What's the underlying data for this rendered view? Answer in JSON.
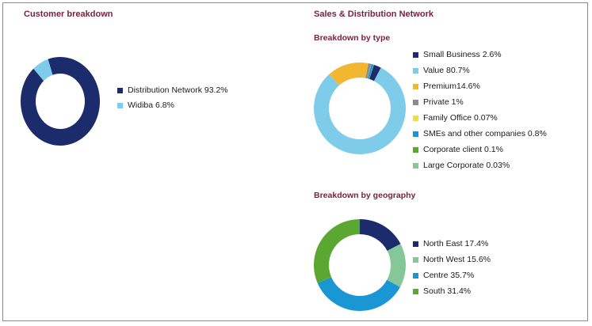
{
  "left_title": "Customer breakdown",
  "right_title": "Sales & Distribution Network",
  "chart_data": [
    {
      "type": "pie",
      "title": "",
      "categories": [
        "Distribution Network",
        "Widiba"
      ],
      "labels": [
        "Distribution Network 93.2%",
        "Widiba 6.8%"
      ],
      "values": [
        93.2,
        6.8
      ],
      "colors": [
        "#1c2b6b",
        "#7ecbea"
      ],
      "legend": "right"
    },
    {
      "type": "pie",
      "title": "Breakdown by type",
      "categories": [
        "Small Business",
        "Value",
        "Premium",
        "Private",
        "Family Office",
        "SMEs and other companies",
        "Corporate client",
        "Large Corporate"
      ],
      "labels": [
        "Small Business 2.6%",
        "Value 80.7%",
        "Premium14.6%",
        "Private 1%",
        "Family Office 0.07%",
        "SMEs and other companies 0.8%",
        "Corporate client 0.1%",
        "Large Corporate 0.03%"
      ],
      "values": [
        2.6,
        80.7,
        14.6,
        1,
        0.07,
        0.8,
        0.1,
        0.03
      ],
      "colors": [
        "#1c2b6b",
        "#7ecbea",
        "#f2b630",
        "#8c8c8c",
        "#e8e04a",
        "#1a96d4",
        "#5aa832",
        "#86c79a"
      ],
      "legend": "right"
    },
    {
      "type": "pie",
      "title": "Breakdown by geography",
      "categories": [
        "North East",
        "North West",
        "Centre",
        "South"
      ],
      "labels": [
        "North East 17.4%",
        "North West 15.6%",
        "Centre 35.7%",
        "South 31.4%"
      ],
      "values": [
        17.4,
        15.6,
        35.7,
        31.4
      ],
      "colors": [
        "#1c2b6b",
        "#86c79a",
        "#1a96d4",
        "#5aa832"
      ],
      "legend": "right"
    }
  ]
}
